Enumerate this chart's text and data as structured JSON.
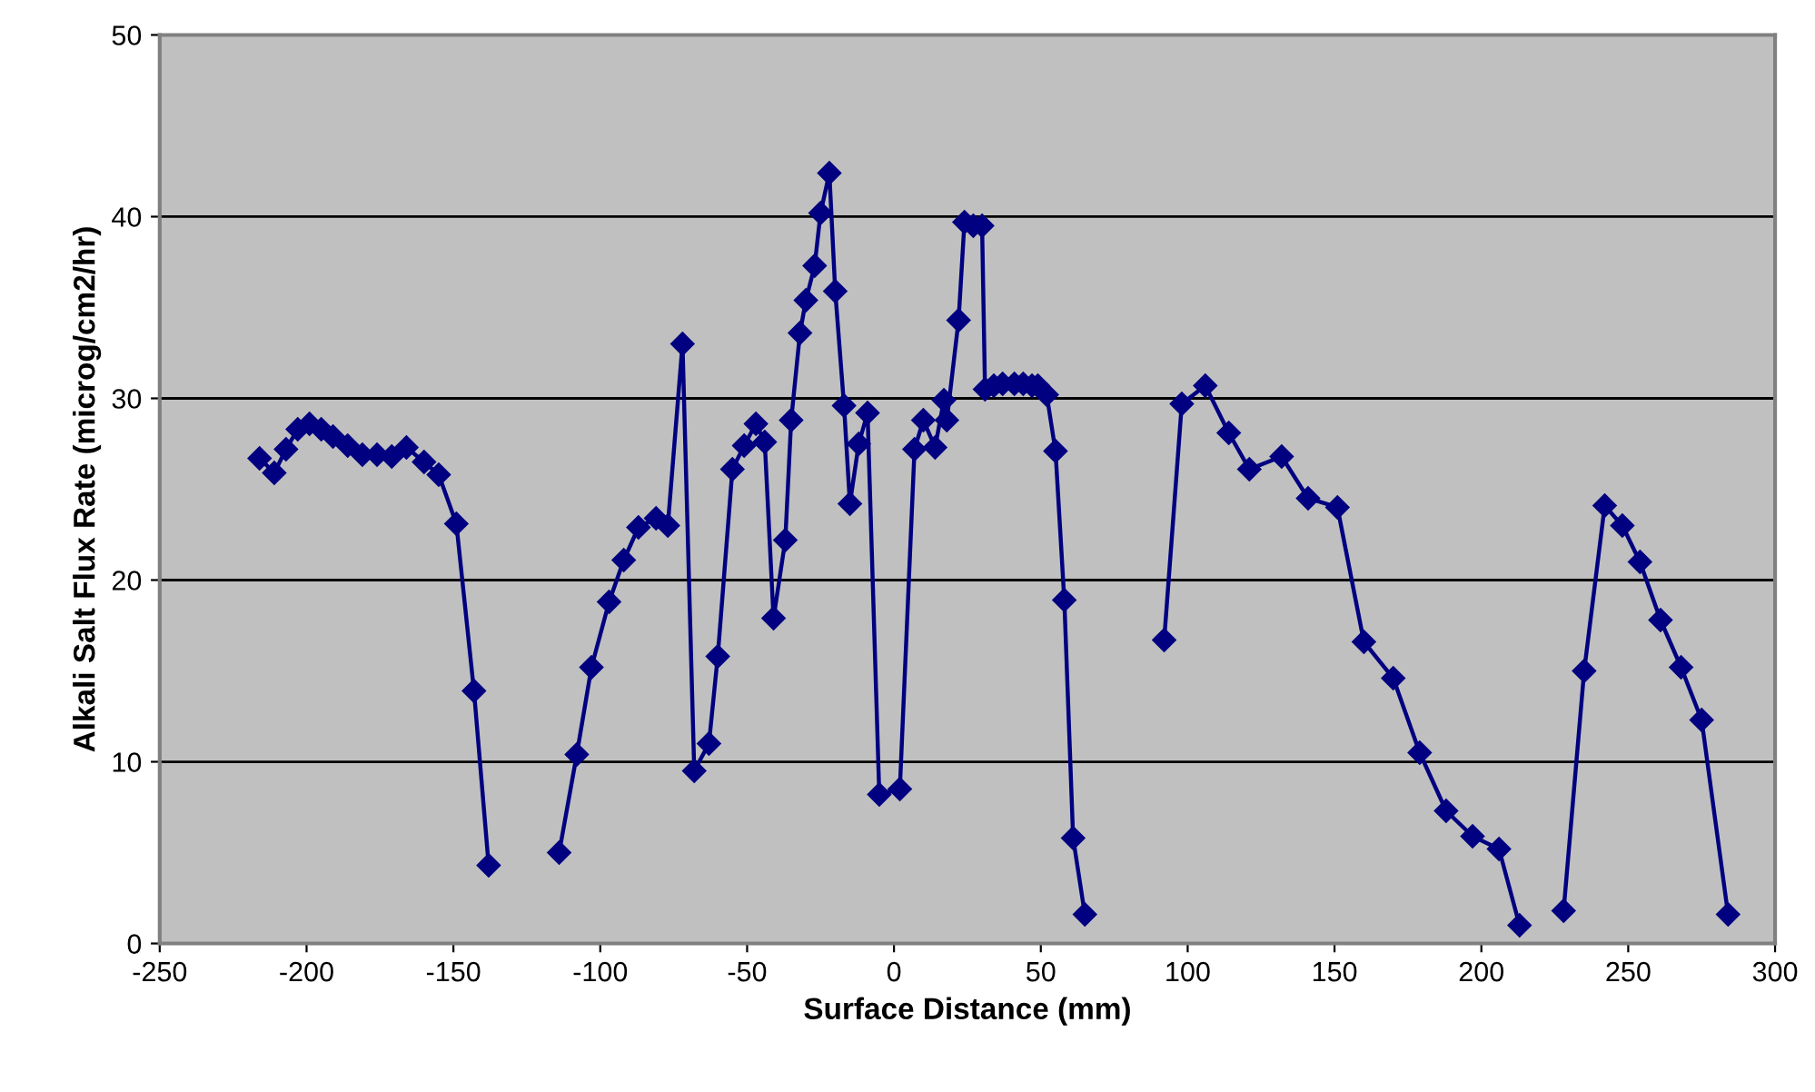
{
  "chart_data": {
    "type": "line",
    "xlabel": "Surface Distance (mm)",
    "ylabel": "Alkali Salt Flux Rate (microg/cm2/hr)",
    "xlim": [
      -250,
      300
    ],
    "xticks": [
      -250,
      -200,
      -150,
      -100,
      -50,
      0,
      50,
      100,
      150,
      200,
      250,
      300
    ],
    "ylim": [
      0,
      50
    ],
    "yticks": [
      0,
      10,
      20,
      30,
      40,
      50
    ],
    "grid": "y",
    "legend": false,
    "marker": "diamond",
    "line_style": "solid",
    "series": [
      {
        "color": "#000080",
        "x": [
          -216,
          -211,
          -207,
          -203,
          -199,
          -195,
          -191,
          -186,
          -181,
          -176,
          -171,
          -166,
          -160,
          -155,
          -149,
          -143,
          -138,
          -126,
          -114,
          -108,
          -103,
          -97,
          -92,
          -87,
          -81,
          -77,
          -72,
          -68,
          -63,
          -60,
          -55,
          -51,
          -47,
          -44,
          -41,
          -37,
          -35,
          -32,
          -30,
          -27,
          -25,
          -22,
          -20,
          -17,
          -15,
          -12,
          -9,
          -5,
          2,
          7,
          10,
          14,
          17,
          18,
          22,
          24,
          27,
          30,
          31,
          34,
          37,
          41,
          44,
          47,
          49,
          52,
          55,
          58,
          61,
          65,
          78,
          92,
          98,
          106,
          114,
          121,
          132,
          141,
          151,
          160,
          170,
          179,
          188,
          197,
          206,
          213,
          220,
          228,
          235,
          242,
          248,
          254,
          261,
          268,
          275,
          284
        ],
        "values": [
          26.7,
          25.9,
          27.2,
          28.3,
          28.6,
          28.3,
          27.9,
          27.4,
          26.9,
          26.9,
          26.8,
          27.3,
          26.5,
          25.8,
          23.1,
          13.9,
          4.3,
          null,
          5.0,
          10.4,
          15.2,
          18.8,
          21.1,
          22.9,
          23.4,
          23.0,
          33.0,
          9.5,
          11.0,
          15.8,
          26.1,
          27.4,
          28.6,
          27.6,
          17.9,
          22.2,
          28.8,
          33.6,
          35.4,
          37.3,
          40.2,
          42.4,
          35.9,
          29.6,
          24.2,
          27.5,
          29.2,
          8.2,
          8.5,
          27.2,
          28.8,
          27.3,
          29.9,
          28.8,
          34.3,
          39.7,
          39.5,
          39.5,
          30.5,
          30.7,
          30.8,
          30.8,
          30.8,
          30.7,
          30.7,
          30.2,
          27.1,
          18.9,
          5.8,
          1.6,
          null,
          16.7,
          29.7,
          30.7,
          28.1,
          26.1,
          26.8,
          24.5,
          24.0,
          16.6,
          14.6,
          10.5,
          7.3,
          5.9,
          5.2,
          1.0,
          null,
          1.8,
          15.0,
          24.1,
          23.0,
          21.0,
          17.8,
          15.2,
          12.3,
          1.6
        ]
      }
    ]
  }
}
